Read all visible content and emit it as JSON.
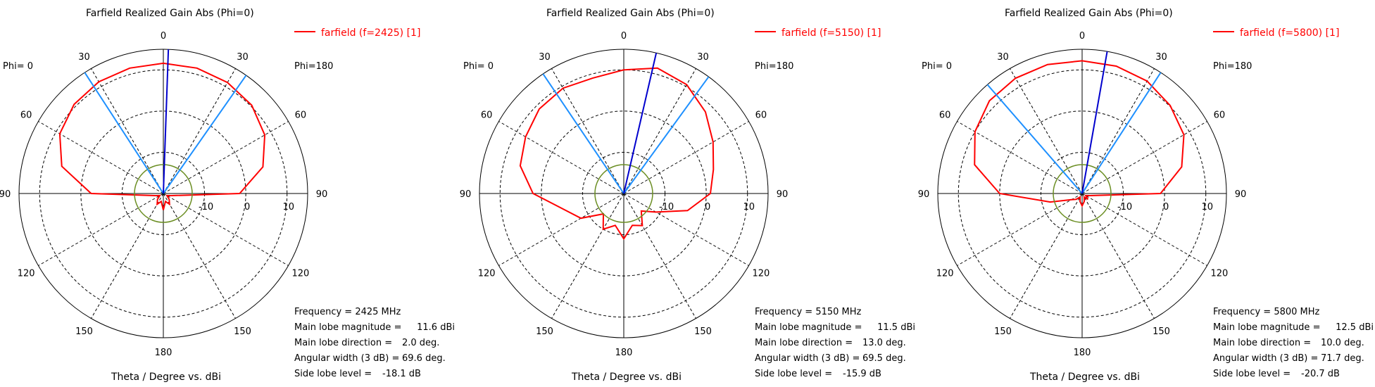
{
  "chart_data": [
    {
      "type": "polar",
      "title": "Farfield Realized Gain Abs (Phi=0)",
      "legend": "farfield (f=2425) [1]",
      "legend_position": "top-right",
      "left_label": "Phi=  0",
      "right_label": "Phi=180",
      "xlabel": "Theta / Degree vs. dBi",
      "angle_ticks": [
        "0",
        "30",
        "60",
        "90",
        "120",
        "150",
        "180",
        "150",
        "120",
        "90",
        "60",
        "30"
      ],
      "radial_range_dbi": [
        -20,
        15
      ],
      "radial_ticks": [
        "-10",
        "0",
        "10"
      ],
      "info": {
        "frequency": "Frequency = 2425 MHz",
        "main_lobe_magnitude": [
          "Main lobe magnitude =",
          "11.6 dBi"
        ],
        "main_lobe_direction": [
          "Main lobe direction =",
          "2.0 deg."
        ],
        "angular_width": [
          "Angular width (3 dB) =",
          "69.6 deg."
        ],
        "side_lobe_level": [
          "Side lobe level =",
          "-18.1 dB"
        ]
      },
      "main_lobe_direction_deg": 2.0,
      "beamwidth_lines_deg": [
        -33.0,
        35.0
      ],
      "series": [
        {
          "color": "#ff0000",
          "theta_deg": [
            -180,
            -165,
            -150,
            -135,
            -120,
            -105,
            -90,
            -75,
            -60,
            -45,
            -30,
            -15,
            0,
            15,
            30,
            45,
            60,
            75,
            90,
            105,
            120,
            135,
            150,
            165
          ],
          "gain_dbi": [
            -16,
            -18,
            -17,
            -18,
            -19,
            -18,
            -2.5,
            5.5,
            9.0,
            10.6,
            11.3,
            11.5,
            11.6,
            11.5,
            11.1,
            10.3,
            8.4,
            5.0,
            -1.5,
            -18,
            -19,
            -18,
            -17,
            -18
          ]
        }
      ]
    },
    {
      "type": "polar",
      "title": "Farfield Realized Gain Abs (Phi=0)",
      "legend": "farfield (f=5150) [1]",
      "legend_position": "top-right",
      "left_label": "Phi=  0",
      "right_label": "Phi=180",
      "xlabel": "Theta / Degree vs. dBi",
      "angle_ticks": [
        "0",
        "30",
        "60",
        "90",
        "120",
        "150",
        "180",
        "150",
        "120",
        "90",
        "60",
        "30"
      ],
      "radial_range_dbi": [
        -20,
        15
      ],
      "radial_ticks": [
        "-10",
        "0",
        "10"
      ],
      "info": {
        "frequency": "Frequency = 5150 MHz",
        "main_lobe_magnitude": [
          "Main lobe magnitude =",
          "11.5 dBi"
        ],
        "main_lobe_direction": [
          "Main lobe direction =",
          "13.0 deg."
        ],
        "angular_width": [
          "Angular width (3 dB) =",
          "69.5 deg."
        ],
        "side_lobe_level": [
          "Side lobe level =",
          "-15.9 dB"
        ]
      },
      "main_lobe_direction_deg": 13.0,
      "beamwidth_lines_deg": [
        -34.0,
        36.0
      ],
      "series": [
        {
          "color": "#ff0000",
          "theta_deg": [
            -180,
            -165,
            -150,
            -135,
            -120,
            -105,
            -90,
            -75,
            -60,
            -45,
            -30,
            -15,
            0,
            15,
            30,
            45,
            60,
            75,
            90,
            105,
            120,
            135,
            150,
            165
          ],
          "gain_dbi": [
            -9,
            -12,
            -10,
            -13,
            -8,
            -5,
            2.0,
            6.0,
            7.5,
            9.0,
            9.5,
            9.0,
            10.0,
            11.5,
            10.5,
            8.0,
            5.0,
            2.5,
            1.0,
            -4,
            -11,
            -14,
            -11,
            -12
          ]
        }
      ]
    },
    {
      "type": "polar",
      "title": "Farfield Realized Gain Abs (Phi=0)",
      "legend": "farfield (f=5800) [1]",
      "legend_position": "top-right",
      "left_label": "Phi=  0",
      "right_label": "Phi=180",
      "xlabel": "Theta / Degree vs. dBi",
      "angle_ticks": [
        "0",
        "30",
        "60",
        "90",
        "120",
        "150",
        "180",
        "150",
        "120",
        "90",
        "60",
        "30"
      ],
      "radial_range_dbi": [
        -20,
        15
      ],
      "radial_ticks": [
        "-10",
        "0",
        "10"
      ],
      "info": {
        "frequency": "Frequency = 5800 MHz",
        "main_lobe_magnitude": [
          "Main lobe magnitude =",
          "12.5 dBi"
        ],
        "main_lobe_direction": [
          "Main lobe direction =",
          "10.0 deg."
        ],
        "angular_width": [
          "Angular width (3 dB) =",
          "71.7 deg."
        ],
        "side_lobe_level": [
          "Side lobe level =",
          "-20.7 dB"
        ]
      },
      "main_lobe_direction_deg": 10.0,
      "beamwidth_lines_deg": [
        -41.0,
        33.0
      ],
      "series": [
        {
          "color": "#ff0000",
          "theta_deg": [
            -180,
            -165,
            -150,
            -135,
            -120,
            -105,
            -90,
            -75,
            -60,
            -45,
            -30,
            -15,
            0,
            15,
            30,
            45,
            60,
            75,
            90,
            105,
            120,
            135,
            150,
            165
          ],
          "gain_dbi": [
            -17,
            -18,
            -19,
            -18,
            -17,
            -12,
            0.0,
            7.0,
            10.0,
            11.8,
            12.3,
            12.4,
            12.2,
            12.0,
            11.5,
            10.2,
            8.5,
            5.0,
            -1.0,
            -18,
            -19,
            -18,
            -19,
            -18
          ]
        }
      ]
    }
  ]
}
